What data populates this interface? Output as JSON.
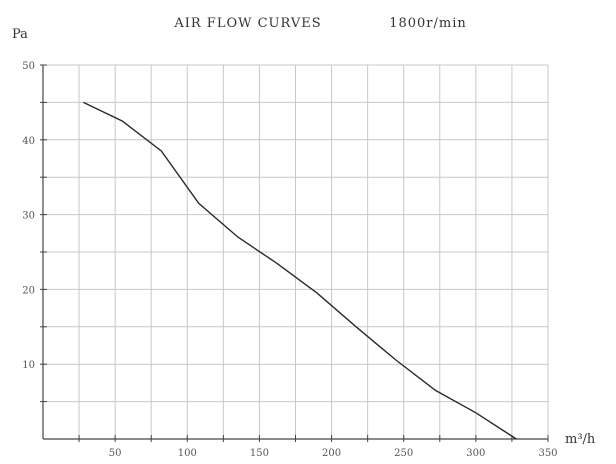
{
  "chart_data": {
    "type": "line",
    "title": "AIR FLOW CURVES",
    "subtitle": "1800r/min",
    "ylabel": "Pa",
    "xlabel": "m³/h",
    "xlim": [
      0,
      350
    ],
    "ylim": [
      0,
      50
    ],
    "x_ticks": [
      50,
      100,
      150,
      200,
      250,
      300,
      350
    ],
    "y_ticks": [
      10,
      20,
      30,
      40,
      50
    ],
    "x_minor_step": 25,
    "y_minor_step": 5,
    "grid": true,
    "series": [
      {
        "x": [
          28,
          55,
          82,
          108,
          135,
          162,
          190,
          217,
          245,
          272,
          300,
          328
        ],
        "y": [
          45,
          42.5,
          38.5,
          31.5,
          27,
          23.5,
          19.5,
          15,
          10.5,
          6.5,
          3.5,
          0
        ],
        "color": "#2a2a2a"
      }
    ]
  }
}
